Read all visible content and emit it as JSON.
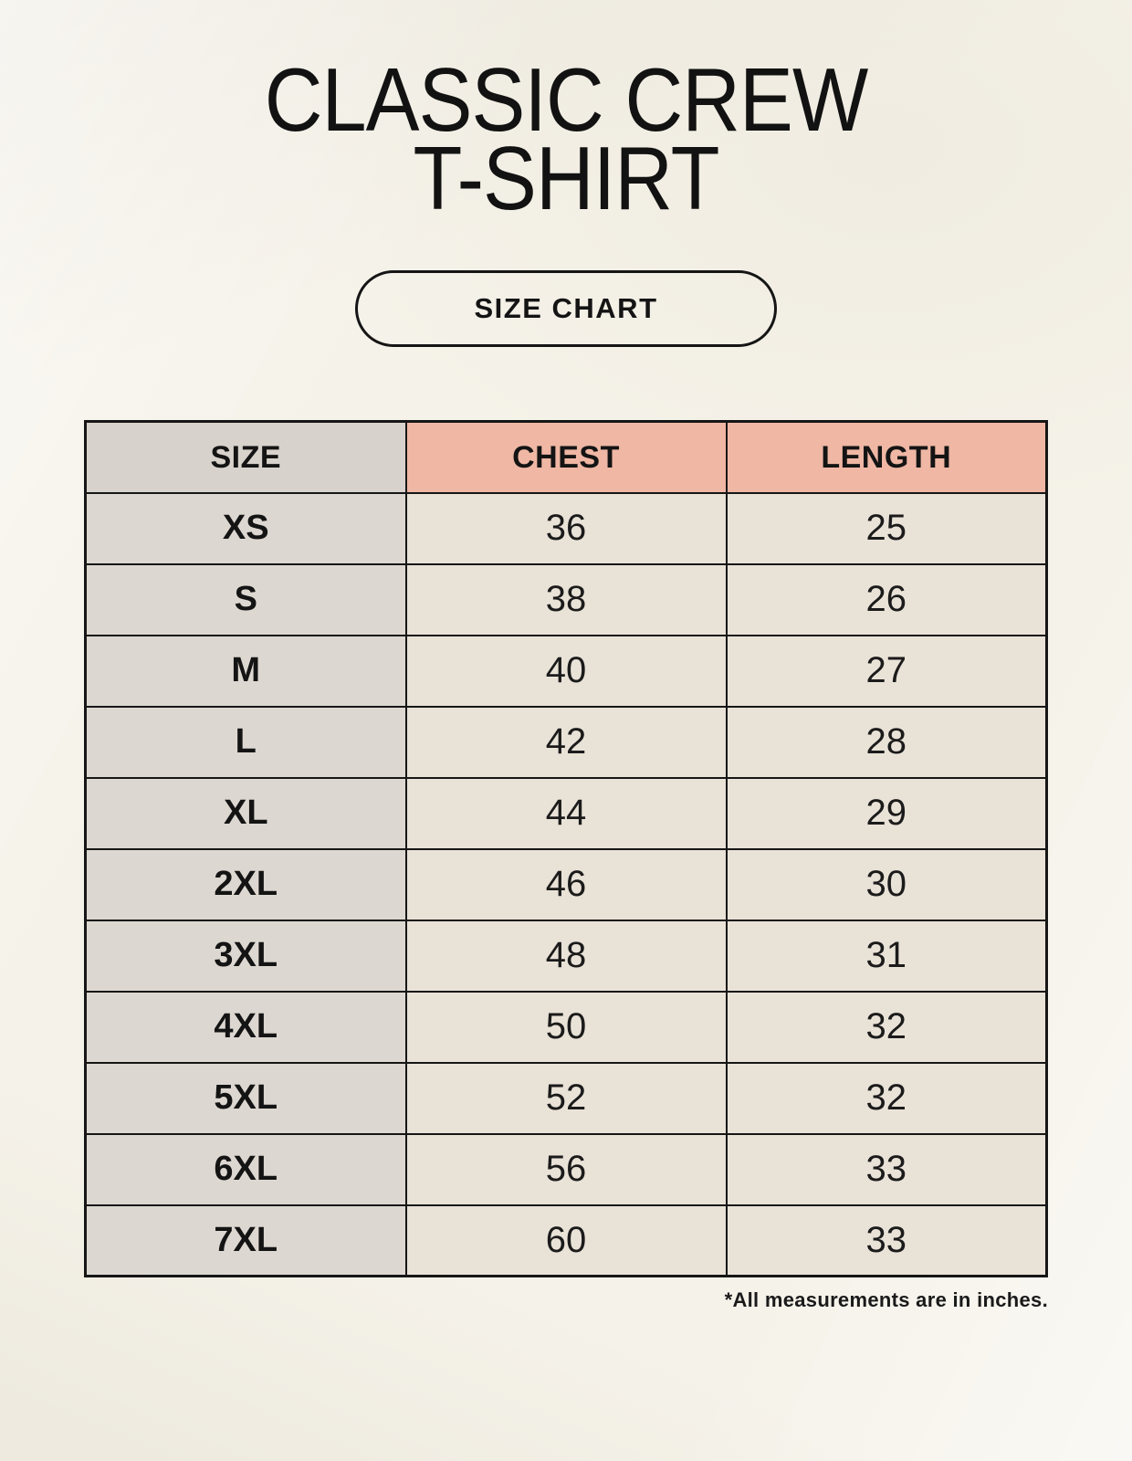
{
  "poster": {
    "title_line1": "CLASSIC CREW",
    "title_line2": "T-SHIRT",
    "badge_label": "SIZE CHART",
    "footnote": "*All measurements are in inches."
  },
  "size_table": {
    "columns": [
      "SIZE",
      "CHEST",
      "LENGTH"
    ],
    "rows": [
      [
        "XS",
        "36",
        "25"
      ],
      [
        "S",
        "38",
        "26"
      ],
      [
        "M",
        "40",
        "27"
      ],
      [
        "L",
        "42",
        "28"
      ],
      [
        "XL",
        "44",
        "29"
      ],
      [
        "2XL",
        "46",
        "30"
      ],
      [
        "3XL",
        "48",
        "31"
      ],
      [
        "4XL",
        "50",
        "32"
      ],
      [
        "5XL",
        "52",
        "32"
      ],
      [
        "6XL",
        "56",
        "33"
      ],
      [
        "7XL",
        "60",
        "33"
      ]
    ]
  },
  "colors": {
    "background": "#f5f2e9",
    "header_accent": "#efb7a4",
    "size_header_cell": "#d8d2cc",
    "size_column_cell": "#ddd7d1",
    "data_cell": "#e9e2d7",
    "table_border": "#161616",
    "text": "#141414"
  }
}
